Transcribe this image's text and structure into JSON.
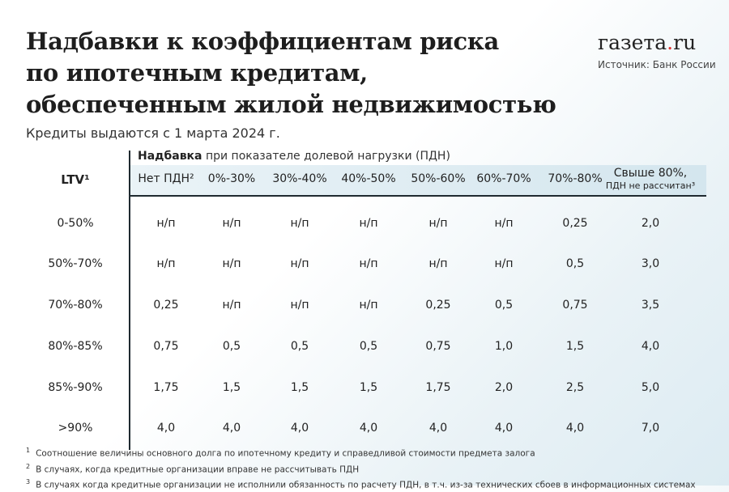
{
  "title_lines": [
    "Надбавки к коэффициентам риска",
    "по ипотечным кредитам,",
    "обеспеченным жилой недвижимостью"
  ],
  "subtitle": "Кредиты выдаются с 1 марта 2024 г.",
  "brand": {
    "name": "газета",
    "dot": ".",
    "tld": "ru"
  },
  "source": "Источник: Банк России",
  "table": {
    "group_header_bold": "Надбавка",
    "group_header_rest": " при показателе долевой нагрузки (ПДН)",
    "row_header": "LTV¹",
    "columns": [
      "Нет ПДН²",
      "0%-30%",
      "30%-40%",
      "40%-50%",
      "50%-60%",
      "60%-70%",
      "70%-80%",
      "Свыше 80%,"
    ],
    "last_column_sub": "ПДН не рассчитан³",
    "rows": [
      {
        "label": "0-50%",
        "values": [
          "н/п",
          "н/п",
          "н/п",
          "н/п",
          "н/п",
          "н/п",
          "0,25",
          "2,0"
        ]
      },
      {
        "label": "50%-70%",
        "values": [
          "н/п",
          "н/п",
          "н/п",
          "н/п",
          "н/п",
          "н/п",
          "0,5",
          "3,0"
        ]
      },
      {
        "label": "70%-80%",
        "values": [
          "0,25",
          "н/п",
          "н/п",
          "н/п",
          "0,25",
          "0,5",
          "0,75",
          "3,5"
        ]
      },
      {
        "label": "80%-85%",
        "values": [
          "0,75",
          "0,5",
          "0,5",
          "0,5",
          "0,75",
          "1,0",
          "1,5",
          "4,0"
        ]
      },
      {
        "label": "85%-90%",
        "values": [
          "1,75",
          "1,5",
          "1,5",
          "1,5",
          "1,75",
          "2,0",
          "2,5",
          "5,0"
        ]
      },
      {
        "label": ">90%",
        "values": [
          "4,0",
          "4,0",
          "4,0",
          "4,0",
          "4,0",
          "4,0",
          "4,0",
          "7,0"
        ]
      }
    ]
  },
  "footnotes": [
    {
      "mark": "1",
      "text": "Соотношение величины основного долга по ипотечному кредиту и справедливой стоимости предмета залога"
    },
    {
      "mark": "2",
      "text": "В случаях, когда кредитные организации вправе не рассчитывать ПДН"
    },
    {
      "mark": "3",
      "text": "В случаях когда кредитные организации не исполнили обязанность по расчету ПДН, в т.ч. из-за технических сбоев в информационных системах"
    }
  ]
}
